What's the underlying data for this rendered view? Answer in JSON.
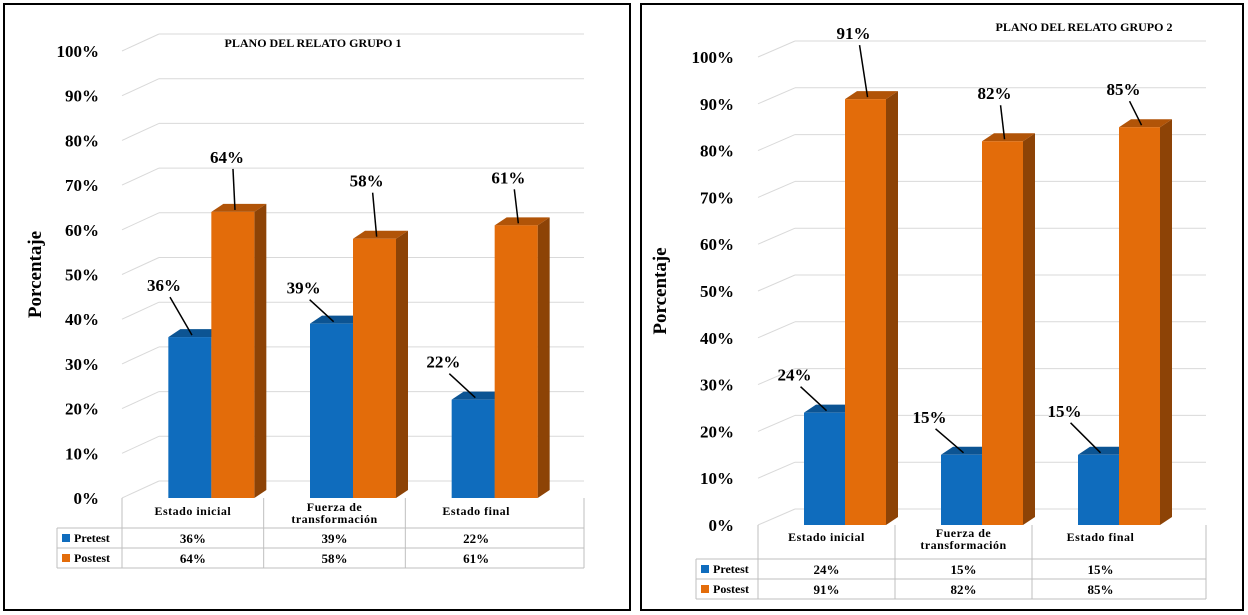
{
  "chart_data": [
    {
      "type": "bar",
      "title": "PLANO DEL RELATO GRUPO 1",
      "ylabel": "Porcentaje",
      "yticks": [
        "0%",
        "10%",
        "20%",
        "30%",
        "40%",
        "50%",
        "60%",
        "70%",
        "80%",
        "90%",
        "100%"
      ],
      "ylim": [
        0,
        100
      ],
      "categories": [
        [
          "Estado inicial"
        ],
        [
          "Fuerza de",
          "transformación"
        ],
        [
          "Estado final"
        ]
      ],
      "series": [
        {
          "name": "Pretest",
          "values": [
            36,
            39,
            22
          ],
          "labels": [
            "36%",
            "39%",
            "22%"
          ],
          "color": "#0f6cbd"
        },
        {
          "name": "Postest",
          "values": [
            64,
            58,
            61
          ],
          "labels": [
            "64%",
            "58%",
            "61%"
          ],
          "color": "#e36c0a"
        }
      ],
      "grid": true,
      "legend": "data-table"
    },
    {
      "type": "bar",
      "title": "PLANO DEL RELATO GRUPO 2",
      "ylabel": "Porcentaje",
      "yticks": [
        "0%",
        "10%",
        "20%",
        "30%",
        "40%",
        "50%",
        "60%",
        "70%",
        "80%",
        "90%",
        "100%"
      ],
      "ylim": [
        0,
        100
      ],
      "categories": [
        [
          "Estado inicial"
        ],
        [
          "Fuerza de",
          "transformación"
        ],
        [
          "Estado final"
        ]
      ],
      "series": [
        {
          "name": "Pretest",
          "values": [
            24,
            15,
            15
          ],
          "labels": [
            "24%",
            "15%",
            "15%"
          ],
          "color": "#0f6cbd"
        },
        {
          "name": "Postest",
          "values": [
            91,
            82,
            85
          ],
          "labels": [
            "91%",
            "82%",
            "85%"
          ],
          "color": "#e36c0a"
        }
      ],
      "grid": true,
      "legend": "data-table"
    }
  ]
}
